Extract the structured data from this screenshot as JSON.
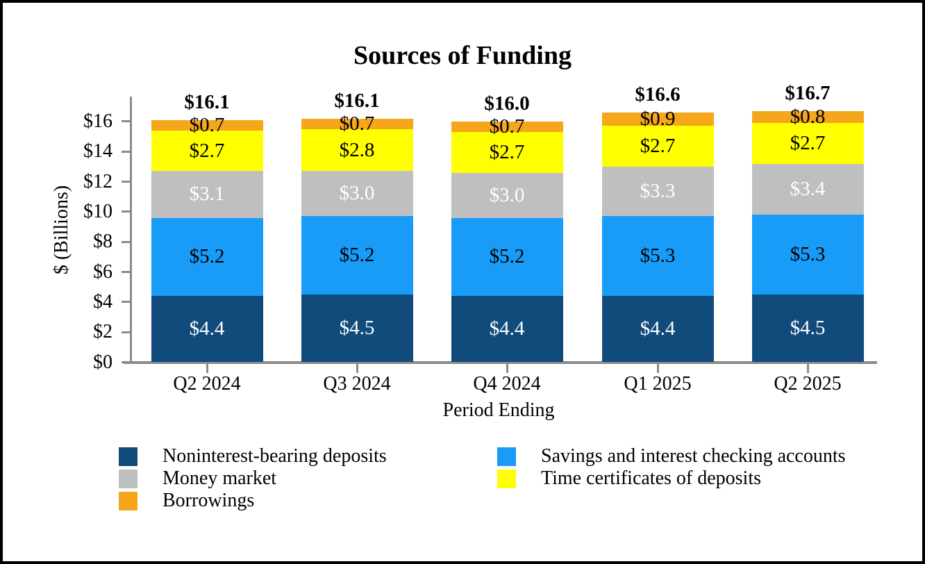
{
  "chart_data": {
    "type": "bar",
    "stacked": true,
    "title": "Sources of Funding",
    "xlabel": "Period Ending",
    "ylabel": "$ (Billions)",
    "value_prefix": "$",
    "categories": [
      "Q2 2024",
      "Q3 2024",
      "Q4 2024",
      "Q1 2025",
      "Q2 2025"
    ],
    "series": [
      {
        "name": "Noninterest-bearing deposits",
        "color": "#114B7C",
        "label_color": "#FFFFFF",
        "values": [
          4.4,
          4.5,
          4.4,
          4.4,
          4.5
        ]
      },
      {
        "name": "Savings and interest checking accounts",
        "color": "#189CF8",
        "label_color": "#000000",
        "values": [
          5.2,
          5.2,
          5.2,
          5.3,
          5.3
        ]
      },
      {
        "name": "Money market",
        "color": "#BFBFBF",
        "label_color": "#FFFFFF",
        "values": [
          3.1,
          3.0,
          3.0,
          3.3,
          3.4
        ]
      },
      {
        "name": "Time certificates of deposits",
        "color": "#FFFF00",
        "label_color": "#000000",
        "values": [
          2.7,
          2.8,
          2.7,
          2.7,
          2.7
        ]
      },
      {
        "name": "Borrowings",
        "color": "#F5A61B",
        "label_color": "#000000",
        "values": [
          0.7,
          0.7,
          0.7,
          0.9,
          0.8
        ]
      }
    ],
    "totals": [
      "$16.1",
      "$16.1",
      "$16.0",
      "$16.6",
      "$16.7"
    ],
    "yticks": {
      "values": [
        0,
        2,
        4,
        6,
        8,
        10,
        12,
        14,
        16
      ],
      "labels": [
        "$0",
        "$2",
        "$4",
        "$6",
        "$8",
        "$10",
        "$12",
        "$14",
        "$16"
      ]
    },
    "ylim": [
      0,
      17.6
    ],
    "grid": false,
    "legend": {
      "position": "bottom",
      "columns": [
        [
          "Noninterest-bearing deposits",
          "Money market",
          "Borrowings"
        ],
        [
          "Savings and interest checking accounts",
          "Time certificates of deposits"
        ]
      ]
    },
    "axis_color": "#8a8a8a"
  }
}
